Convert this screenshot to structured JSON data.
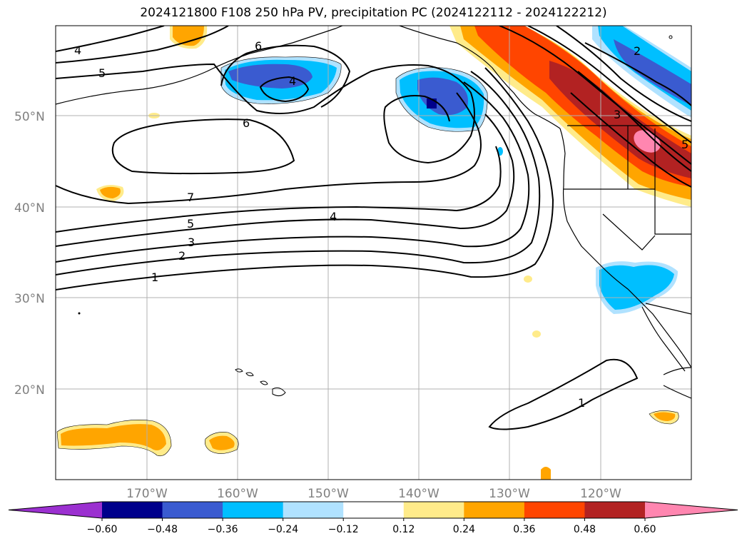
{
  "title": "2024121800 F108 250 hPa PV, precipitation PC (2024122112 - 2024122212)",
  "lat_labels": [
    "50°N",
    "40°N",
    "30°N",
    "20°N"
  ],
  "lon_labels": [
    "170°W",
    "160°W",
    "150°W",
    "140°W",
    "130°W",
    "120°W"
  ],
  "contour_labels": [
    "4",
    "5",
    "6",
    "4",
    "6",
    "7",
    "5",
    "3",
    "2",
    "1",
    "4",
    "1",
    "2",
    "3",
    "5"
  ],
  "colorbar": {
    "ticks": [
      "−0.60",
      "−0.48",
      "−0.36",
      "−0.24",
      "−0.12",
      "0.12",
      "0.24",
      "0.36",
      "0.48",
      "0.60"
    ],
    "colors": [
      "#9b30d0",
      "#00008b",
      "#3a5bd0",
      "#00bfff",
      "#b0e2ff",
      "#ffffff",
      "#ffeb8a",
      "#ffa500",
      "#ff4500",
      "#b22222",
      "#ff86b0"
    ]
  }
}
